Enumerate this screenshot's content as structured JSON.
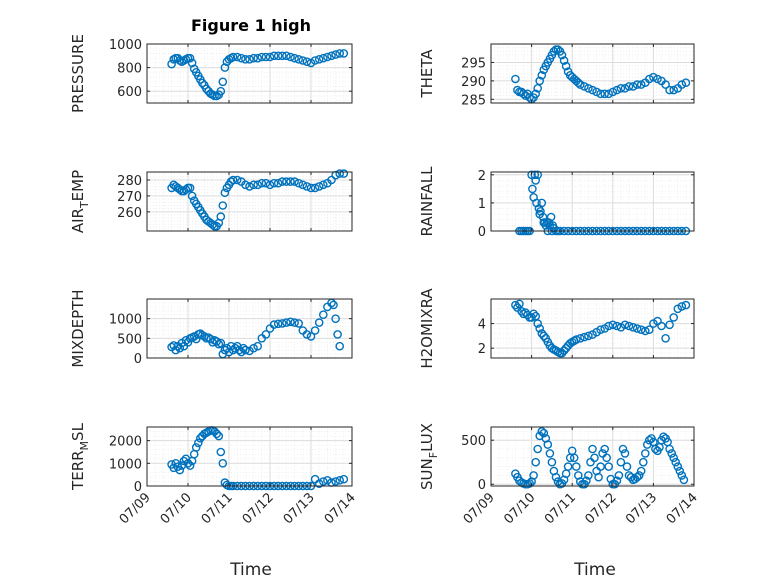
{
  "title": "Figure 1 high",
  "colors": {
    "marker": "#0072BD",
    "axis": "#262626",
    "grid": "#dcdcdc",
    "minorgrid": "#ececec"
  },
  "chart_data": [
    {
      "type": "scatter",
      "ylabel": "PRESSURE",
      "ylim": [
        500,
        1000
      ],
      "yticks": [
        600,
        800,
        1000
      ],
      "xlim": [
        0,
        5
      ],
      "grid": true,
      "x": [
        0.6,
        0.65,
        0.7,
        0.75,
        0.8,
        0.85,
        0.9,
        0.95,
        1.0,
        1.05,
        1.1,
        1.15,
        1.2,
        1.25,
        1.3,
        1.35,
        1.4,
        1.45,
        1.5,
        1.55,
        1.6,
        1.65,
        1.7,
        1.75,
        1.8,
        1.85,
        1.9,
        1.95,
        2.0,
        2.05,
        2.1,
        2.2,
        2.3,
        2.4,
        2.5,
        2.6,
        2.7,
        2.8,
        2.9,
        3.0,
        3.1,
        3.2,
        3.3,
        3.4,
        3.5,
        3.6,
        3.7,
        3.8,
        3.9,
        4.0,
        4.1,
        4.2,
        4.3,
        4.4,
        4.5,
        4.6,
        4.7,
        4.8
      ],
      "y": [
        830,
        870,
        880,
        880,
        860,
        850,
        860,
        870,
        880,
        880,
        840,
        790,
        760,
        730,
        700,
        670,
        650,
        620,
        600,
        580,
        570,
        560,
        560,
        570,
        600,
        680,
        800,
        850,
        870,
        880,
        890,
        890,
        880,
        870,
        870,
        880,
        880,
        890,
        890,
        890,
        900,
        900,
        900,
        900,
        890,
        880,
        870,
        860,
        850,
        840,
        860,
        870,
        880,
        890,
        900,
        910,
        920,
        920
      ]
    },
    {
      "type": "scatter",
      "ylabel": "THETA",
      "ylim": [
        284,
        300
      ],
      "yticks": [
        285,
        290,
        295
      ],
      "xlim": [
        0,
        5
      ],
      "grid": true,
      "x": [
        0.6,
        0.65,
        0.7,
        0.75,
        0.8,
        0.85,
        0.9,
        0.95,
        1.0,
        1.05,
        1.1,
        1.15,
        1.2,
        1.25,
        1.3,
        1.35,
        1.4,
        1.45,
        1.5,
        1.55,
        1.6,
        1.65,
        1.7,
        1.75,
        1.8,
        1.85,
        1.9,
        1.95,
        2.0,
        2.05,
        2.1,
        2.15,
        2.2,
        2.3,
        2.4,
        2.5,
        2.6,
        2.7,
        2.8,
        2.9,
        3.0,
        3.1,
        3.2,
        3.3,
        3.4,
        3.5,
        3.6,
        3.7,
        3.8,
        3.9,
        4.0,
        4.1,
        4.2,
        4.3,
        4.4,
        4.5,
        4.6,
        4.7,
        4.8
      ],
      "y": [
        290.5,
        287.5,
        287,
        287,
        286.5,
        286,
        286.5,
        285.5,
        285,
        285.5,
        286.5,
        288,
        290,
        291.5,
        293,
        294,
        295,
        296,
        297,
        298,
        298.5,
        298.5,
        298,
        297,
        295.5,
        294,
        292.5,
        291.5,
        291,
        290.5,
        290,
        289.5,
        289,
        288.5,
        288,
        287.5,
        287,
        286.5,
        286.5,
        286.5,
        287,
        287.5,
        288,
        288,
        288.5,
        288.5,
        289,
        289,
        289.5,
        290.5,
        291,
        290.5,
        290,
        289,
        287.5,
        287.5,
        288,
        289,
        289.5
      ]
    },
    {
      "type": "scatter",
      "ylabel": "AIR_TEMP",
      "ylim": [
        248,
        285
      ],
      "yticks": [
        260,
        270,
        280
      ],
      "xlim": [
        0,
        5
      ],
      "grid": true,
      "x": [
        0.6,
        0.65,
        0.7,
        0.75,
        0.8,
        0.85,
        0.9,
        0.95,
        1.0,
        1.05,
        1.1,
        1.15,
        1.2,
        1.25,
        1.3,
        1.35,
        1.4,
        1.45,
        1.5,
        1.55,
        1.6,
        1.65,
        1.7,
        1.75,
        1.8,
        1.85,
        1.9,
        1.95,
        2.0,
        2.05,
        2.1,
        2.2,
        2.3,
        2.4,
        2.5,
        2.6,
        2.7,
        2.8,
        2.9,
        3.0,
        3.1,
        3.2,
        3.3,
        3.4,
        3.5,
        3.6,
        3.7,
        3.8,
        3.9,
        4.0,
        4.1,
        4.2,
        4.3,
        4.4,
        4.5,
        4.6,
        4.7,
        4.8
      ],
      "y": [
        275,
        277,
        276,
        275,
        274,
        273,
        273,
        274,
        275,
        275,
        270,
        267,
        265,
        263,
        261,
        259,
        257,
        255,
        254,
        253,
        252,
        251,
        251,
        253,
        257,
        264,
        272,
        275,
        277,
        279,
        280,
        280,
        279,
        277,
        276,
        277,
        277,
        278,
        278,
        277,
        278,
        278,
        279,
        279,
        279,
        279,
        278,
        277,
        276,
        275,
        275,
        276,
        277,
        278,
        280,
        283,
        284,
        284
      ]
    },
    {
      "type": "scatter",
      "ylabel": "RAINFALL",
      "ylim": [
        0,
        2.1
      ],
      "yticks": [
        0,
        1,
        2
      ],
      "xlim": [
        0,
        5
      ],
      "grid": true,
      "x": [
        0.7,
        0.75,
        0.8,
        0.85,
        0.9,
        0.95,
        1.0,
        1.02,
        1.05,
        1.08,
        1.1,
        1.12,
        1.15,
        1.18,
        1.2,
        1.22,
        1.25,
        1.28,
        1.3,
        1.32,
        1.35,
        1.38,
        1.4,
        1.42,
        1.45,
        1.48,
        1.5,
        1.52,
        1.55,
        1.6,
        1.65,
        1.7,
        1.8,
        1.9,
        2.0,
        2.1,
        2.2,
        2.3,
        2.4,
        2.5,
        2.6,
        2.7,
        2.8,
        2.9,
        3.0,
        3.1,
        3.2,
        3.3,
        3.4,
        3.5,
        3.6,
        3.7,
        3.8,
        3.9,
        4.0,
        4.1,
        4.2,
        4.3,
        4.4,
        4.5,
        4.6,
        4.7,
        4.8
      ],
      "y": [
        0,
        0,
        0,
        0,
        0,
        0,
        2,
        1.5,
        1.2,
        2,
        1.8,
        1,
        2,
        0.8,
        0.6,
        0.7,
        1,
        0.5,
        0.3,
        0.3,
        0.2,
        0.3,
        0,
        0.3,
        0.2,
        0.5,
        0,
        0.2,
        0.1,
        0,
        0,
        0,
        0,
        0,
        0,
        0,
        0,
        0,
        0,
        0,
        0,
        0,
        0,
        0,
        0,
        0,
        0,
        0,
        0,
        0,
        0,
        0,
        0,
        0,
        0,
        0,
        0,
        0,
        0,
        0,
        0,
        0,
        0
      ]
    },
    {
      "type": "scatter",
      "ylabel": "MIXDEPTH",
      "ylim": [
        0,
        1500
      ],
      "yticks": [
        0,
        500,
        1000
      ],
      "xlim": [
        0,
        5
      ],
      "grid": true,
      "x": [
        0.6,
        0.65,
        0.7,
        0.75,
        0.8,
        0.85,
        0.9,
        0.95,
        1.0,
        1.05,
        1.1,
        1.15,
        1.2,
        1.25,
        1.3,
        1.35,
        1.4,
        1.45,
        1.5,
        1.55,
        1.6,
        1.65,
        1.7,
        1.75,
        1.8,
        1.85,
        1.9,
        1.95,
        2.0,
        2.05,
        2.1,
        2.15,
        2.2,
        2.25,
        2.3,
        2.35,
        2.4,
        2.5,
        2.6,
        2.7,
        2.8,
        2.9,
        3.0,
        3.1,
        3.2,
        3.3,
        3.4,
        3.5,
        3.6,
        3.7,
        3.8,
        3.9,
        4.0,
        4.1,
        4.2,
        4.3,
        4.4,
        4.5,
        4.55,
        4.6,
        4.65,
        4.7
      ],
      "y": [
        280,
        320,
        200,
        300,
        250,
        380,
        300,
        450,
        400,
        500,
        520,
        550,
        480,
        600,
        620,
        580,
        550,
        500,
        520,
        480,
        400,
        450,
        420,
        350,
        380,
        100,
        200,
        250,
        150,
        300,
        200,
        250,
        300,
        200,
        150,
        250,
        200,
        180,
        250,
        300,
        500,
        600,
        750,
        850,
        870,
        880,
        900,
        920,
        900,
        880,
        700,
        600,
        550,
        700,
        900,
        1100,
        1300,
        1400,
        1350,
        1000,
        600,
        300
      ]
    },
    {
      "type": "scatter",
      "ylabel": "H2OMIXRA",
      "ylim": [
        1.2,
        6.0
      ],
      "yticks": [
        2,
        4
      ],
      "xlim": [
        0,
        5
      ],
      "grid": true,
      "x": [
        0.6,
        0.65,
        0.7,
        0.75,
        0.8,
        0.85,
        0.9,
        0.95,
        1.0,
        1.05,
        1.1,
        1.15,
        1.2,
        1.25,
        1.3,
        1.35,
        1.4,
        1.45,
        1.5,
        1.55,
        1.6,
        1.65,
        1.7,
        1.75,
        1.8,
        1.85,
        1.9,
        1.95,
        2.0,
        2.05,
        2.1,
        2.2,
        2.3,
        2.4,
        2.5,
        2.6,
        2.7,
        2.8,
        2.9,
        3.0,
        3.1,
        3.2,
        3.3,
        3.4,
        3.5,
        3.6,
        3.7,
        3.8,
        3.9,
        4.0,
        4.1,
        4.2,
        4.3,
        4.4,
        4.5,
        4.6,
        4.7,
        4.8
      ],
      "y": [
        5.5,
        5.3,
        5.6,
        5.0,
        4.8,
        4.9,
        4.7,
        4.5,
        4.5,
        4.8,
        4.6,
        4.0,
        3.6,
        3.2,
        3.0,
        2.8,
        2.5,
        2.2,
        2.0,
        1.9,
        1.8,
        1.7,
        1.6,
        1.6,
        1.8,
        2.0,
        2.2,
        2.4,
        2.5,
        2.6,
        2.7,
        2.8,
        2.9,
        3.0,
        3.1,
        3.3,
        3.5,
        3.6,
        3.8,
        3.9,
        3.8,
        3.7,
        3.9,
        3.8,
        3.7,
        3.6,
        3.5,
        3.4,
        3.5,
        4.0,
        4.2,
        3.8,
        2.8,
        3.9,
        4.5,
        5.2,
        5.4,
        5.5
      ]
    },
    {
      "type": "scatter",
      "ylabel": "TERR_MSL",
      "ylim": [
        0,
        2600
      ],
      "yticks": [
        0,
        1000,
        2000
      ],
      "xlim": [
        0,
        5
      ],
      "grid": true,
      "x": [
        0.6,
        0.65,
        0.7,
        0.75,
        0.8,
        0.85,
        0.9,
        0.95,
        1.0,
        1.05,
        1.1,
        1.15,
        1.2,
        1.25,
        1.3,
        1.35,
        1.4,
        1.45,
        1.5,
        1.55,
        1.6,
        1.65,
        1.7,
        1.75,
        1.8,
        1.85,
        1.9,
        1.95,
        2.0,
        2.05,
        2.1,
        2.2,
        2.3,
        2.4,
        2.5,
        2.6,
        2.7,
        2.8,
        2.9,
        3.0,
        3.1,
        3.2,
        3.3,
        3.4,
        3.5,
        3.6,
        3.7,
        3.8,
        3.9,
        4.0,
        4.1,
        4.2,
        4.3,
        4.4,
        4.5,
        4.6,
        4.7,
        4.8
      ],
      "y": [
        950,
        800,
        1000,
        850,
        700,
        900,
        1100,
        1200,
        1000,
        900,
        1100,
        1400,
        1700,
        1900,
        2100,
        2200,
        2300,
        2350,
        2400,
        2450,
        2450,
        2400,
        2300,
        2200,
        1500,
        1000,
        150,
        50,
        0,
        0,
        0,
        0,
        0,
        0,
        0,
        0,
        0,
        0,
        0,
        0,
        0,
        0,
        0,
        0,
        0,
        0,
        0,
        0,
        0,
        0,
        300,
        100,
        200,
        250,
        150,
        200,
        250,
        300
      ]
    },
    {
      "type": "scatter",
      "ylabel": "SUN_FLUX",
      "ylim": [
        -20,
        650
      ],
      "yticks": [
        0,
        500
      ],
      "xlim": [
        0,
        5
      ],
      "grid": true,
      "x": [
        0.6,
        0.65,
        0.7,
        0.75,
        0.8,
        0.85,
        0.9,
        0.95,
        1.0,
        1.05,
        1.1,
        1.15,
        1.2,
        1.25,
        1.3,
        1.35,
        1.4,
        1.45,
        1.5,
        1.55,
        1.6,
        1.65,
        1.7,
        1.75,
        1.8,
        1.85,
        1.9,
        1.95,
        2.0,
        2.05,
        2.1,
        2.15,
        2.2,
        2.25,
        2.3,
        2.35,
        2.4,
        2.45,
        2.5,
        2.55,
        2.6,
        2.65,
        2.7,
        2.75,
        2.8,
        2.85,
        2.9,
        2.95,
        3.0,
        3.05,
        3.1,
        3.15,
        3.2,
        3.25,
        3.3,
        3.35,
        3.4,
        3.45,
        3.5,
        3.55,
        3.6,
        3.65,
        3.7,
        3.75,
        3.8,
        3.85,
        3.9,
        3.95,
        4.0,
        4.05,
        4.1,
        4.15,
        4.2,
        4.25,
        4.3,
        4.35,
        4.4,
        4.45,
        4.5,
        4.55,
        4.6,
        4.65,
        4.7,
        4.75
      ],
      "y": [
        120,
        80,
        40,
        20,
        10,
        0,
        0,
        10,
        30,
        100,
        250,
        400,
        550,
        600,
        580,
        520,
        450,
        350,
        250,
        150,
        80,
        30,
        0,
        10,
        50,
        120,
        200,
        300,
        380,
        300,
        200,
        100,
        30,
        0,
        0,
        40,
        100,
        250,
        400,
        300,
        150,
        80,
        200,
        350,
        400,
        300,
        200,
        60,
        0,
        0,
        40,
        100,
        250,
        400,
        350,
        200,
        100,
        80,
        50,
        60,
        80,
        100,
        150,
        250,
        350,
        450,
        500,
        520,
        480,
        400,
        380,
        420,
        500,
        540,
        520,
        480,
        400,
        350,
        300,
        250,
        200,
        150,
        100,
        50
      ]
    }
  ],
  "xticklabels": [
    "07/09",
    "07/10",
    "07/11",
    "07/12",
    "07/13",
    "07/14"
  ],
  "xlabel": "Time"
}
